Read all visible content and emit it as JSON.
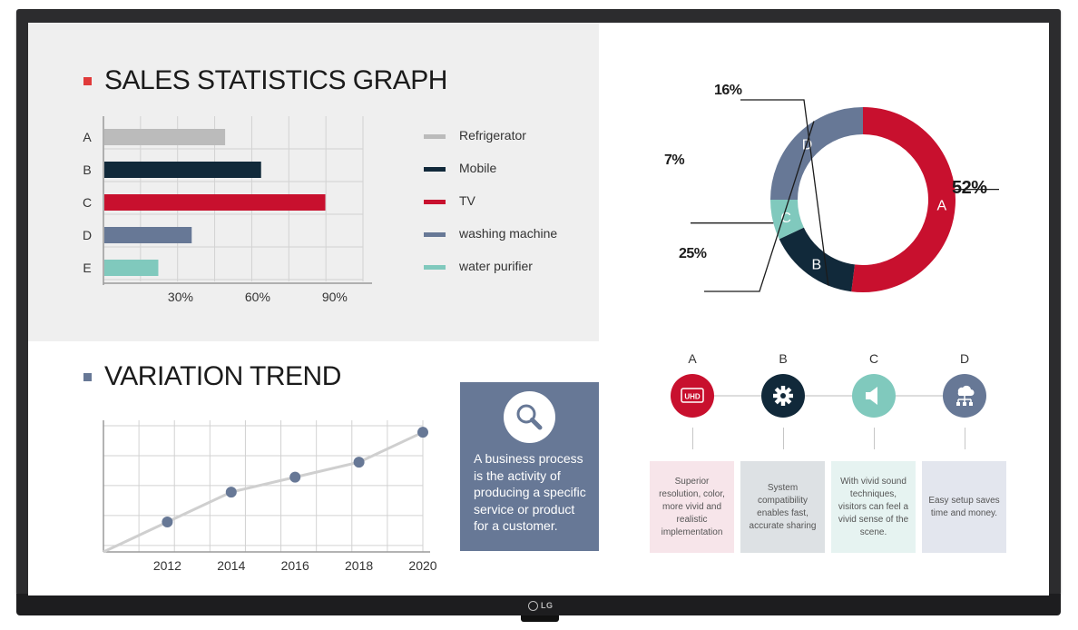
{
  "brand": "LG",
  "colors": {
    "refrigerator": "#bbbbbb",
    "mobile": "#11293a",
    "tv": "#c8102e",
    "washing": "#677896",
    "purifier": "#80c9bd",
    "accent_red": "#e03a3a",
    "accent_slate": "#677896"
  },
  "sales": {
    "title": "SALES STATISTICS GRAPH",
    "legend": [
      {
        "label": "Refrigerator",
        "color": "#bbbbbb"
      },
      {
        "label": "Mobile",
        "color": "#11293a"
      },
      {
        "label": "TV",
        "color": "#c8102e"
      },
      {
        "label": "washing machine",
        "color": "#677896"
      },
      {
        "label": "water purifier",
        "color": "#80c9bd"
      }
    ]
  },
  "trend": {
    "title": "VARIATION TREND"
  },
  "info_box": {
    "icon": "magnifier-icon",
    "text": "A business process is the activity of producing a specific service or product for a customer."
  },
  "features": [
    {
      "letter": "A",
      "icon": "uhd-icon",
      "icon_text": "UHD",
      "color": "#c8102e",
      "card_bg": "#f7e5ea",
      "text": "Superior resolution, color, more vivid and realistic implementation"
    },
    {
      "letter": "B",
      "icon": "gear-icon",
      "color": "#11293a",
      "card_bg": "#dde1e4",
      "text": "System compatibility enables fast, accurate sharing"
    },
    {
      "letter": "C",
      "icon": "speaker-icon",
      "color": "#80c9bd",
      "card_bg": "#e6f3f1",
      "text": "With vivid sound techniques, visitors can feel a vivid sense of the scene."
    },
    {
      "letter": "D",
      "icon": "network-icon",
      "color": "#677896",
      "card_bg": "#e3e6ee",
      "text": "Easy setup saves time and money."
    }
  ],
  "chart_data": [
    {
      "type": "bar",
      "orientation": "horizontal",
      "title": "SALES STATISTICS GRAPH",
      "categories": [
        "A",
        "B",
        "C",
        "D",
        "E"
      ],
      "values": [
        47,
        61,
        86,
        34,
        21
      ],
      "colors": [
        "#bbbbbb",
        "#11293a",
        "#c8102e",
        "#677896",
        "#80c9bd"
      ],
      "series_names": [
        "Refrigerator",
        "Mobile",
        "TV",
        "washing machine",
        "water purifier"
      ],
      "x_ticks": [
        30,
        60,
        90
      ],
      "x_tick_labels": [
        "30%",
        "60%",
        "90%"
      ],
      "xlim": [
        0,
        101
      ],
      "grid": true,
      "legend": "right"
    },
    {
      "type": "pie",
      "donut": true,
      "labels": [
        "A",
        "B",
        "C",
        "D"
      ],
      "values": [
        52,
        16,
        7,
        25
      ],
      "value_labels": [
        "52%",
        "16%",
        "7%",
        "25%"
      ],
      "colors": [
        "#c8102e",
        "#11293a",
        "#80c9bd",
        "#677896"
      ]
    },
    {
      "type": "line",
      "title": "VARIATION TREND",
      "x": [
        2012,
        2014,
        2016,
        2018,
        2020
      ],
      "x_tick_labels": [
        "2012",
        "2014",
        "2016",
        "2018",
        "2020"
      ],
      "y": [
        1.0,
        2.0,
        2.5,
        3.0,
        4.0
      ],
      "ylim": [
        0,
        4.4
      ],
      "grid": true
    }
  ]
}
